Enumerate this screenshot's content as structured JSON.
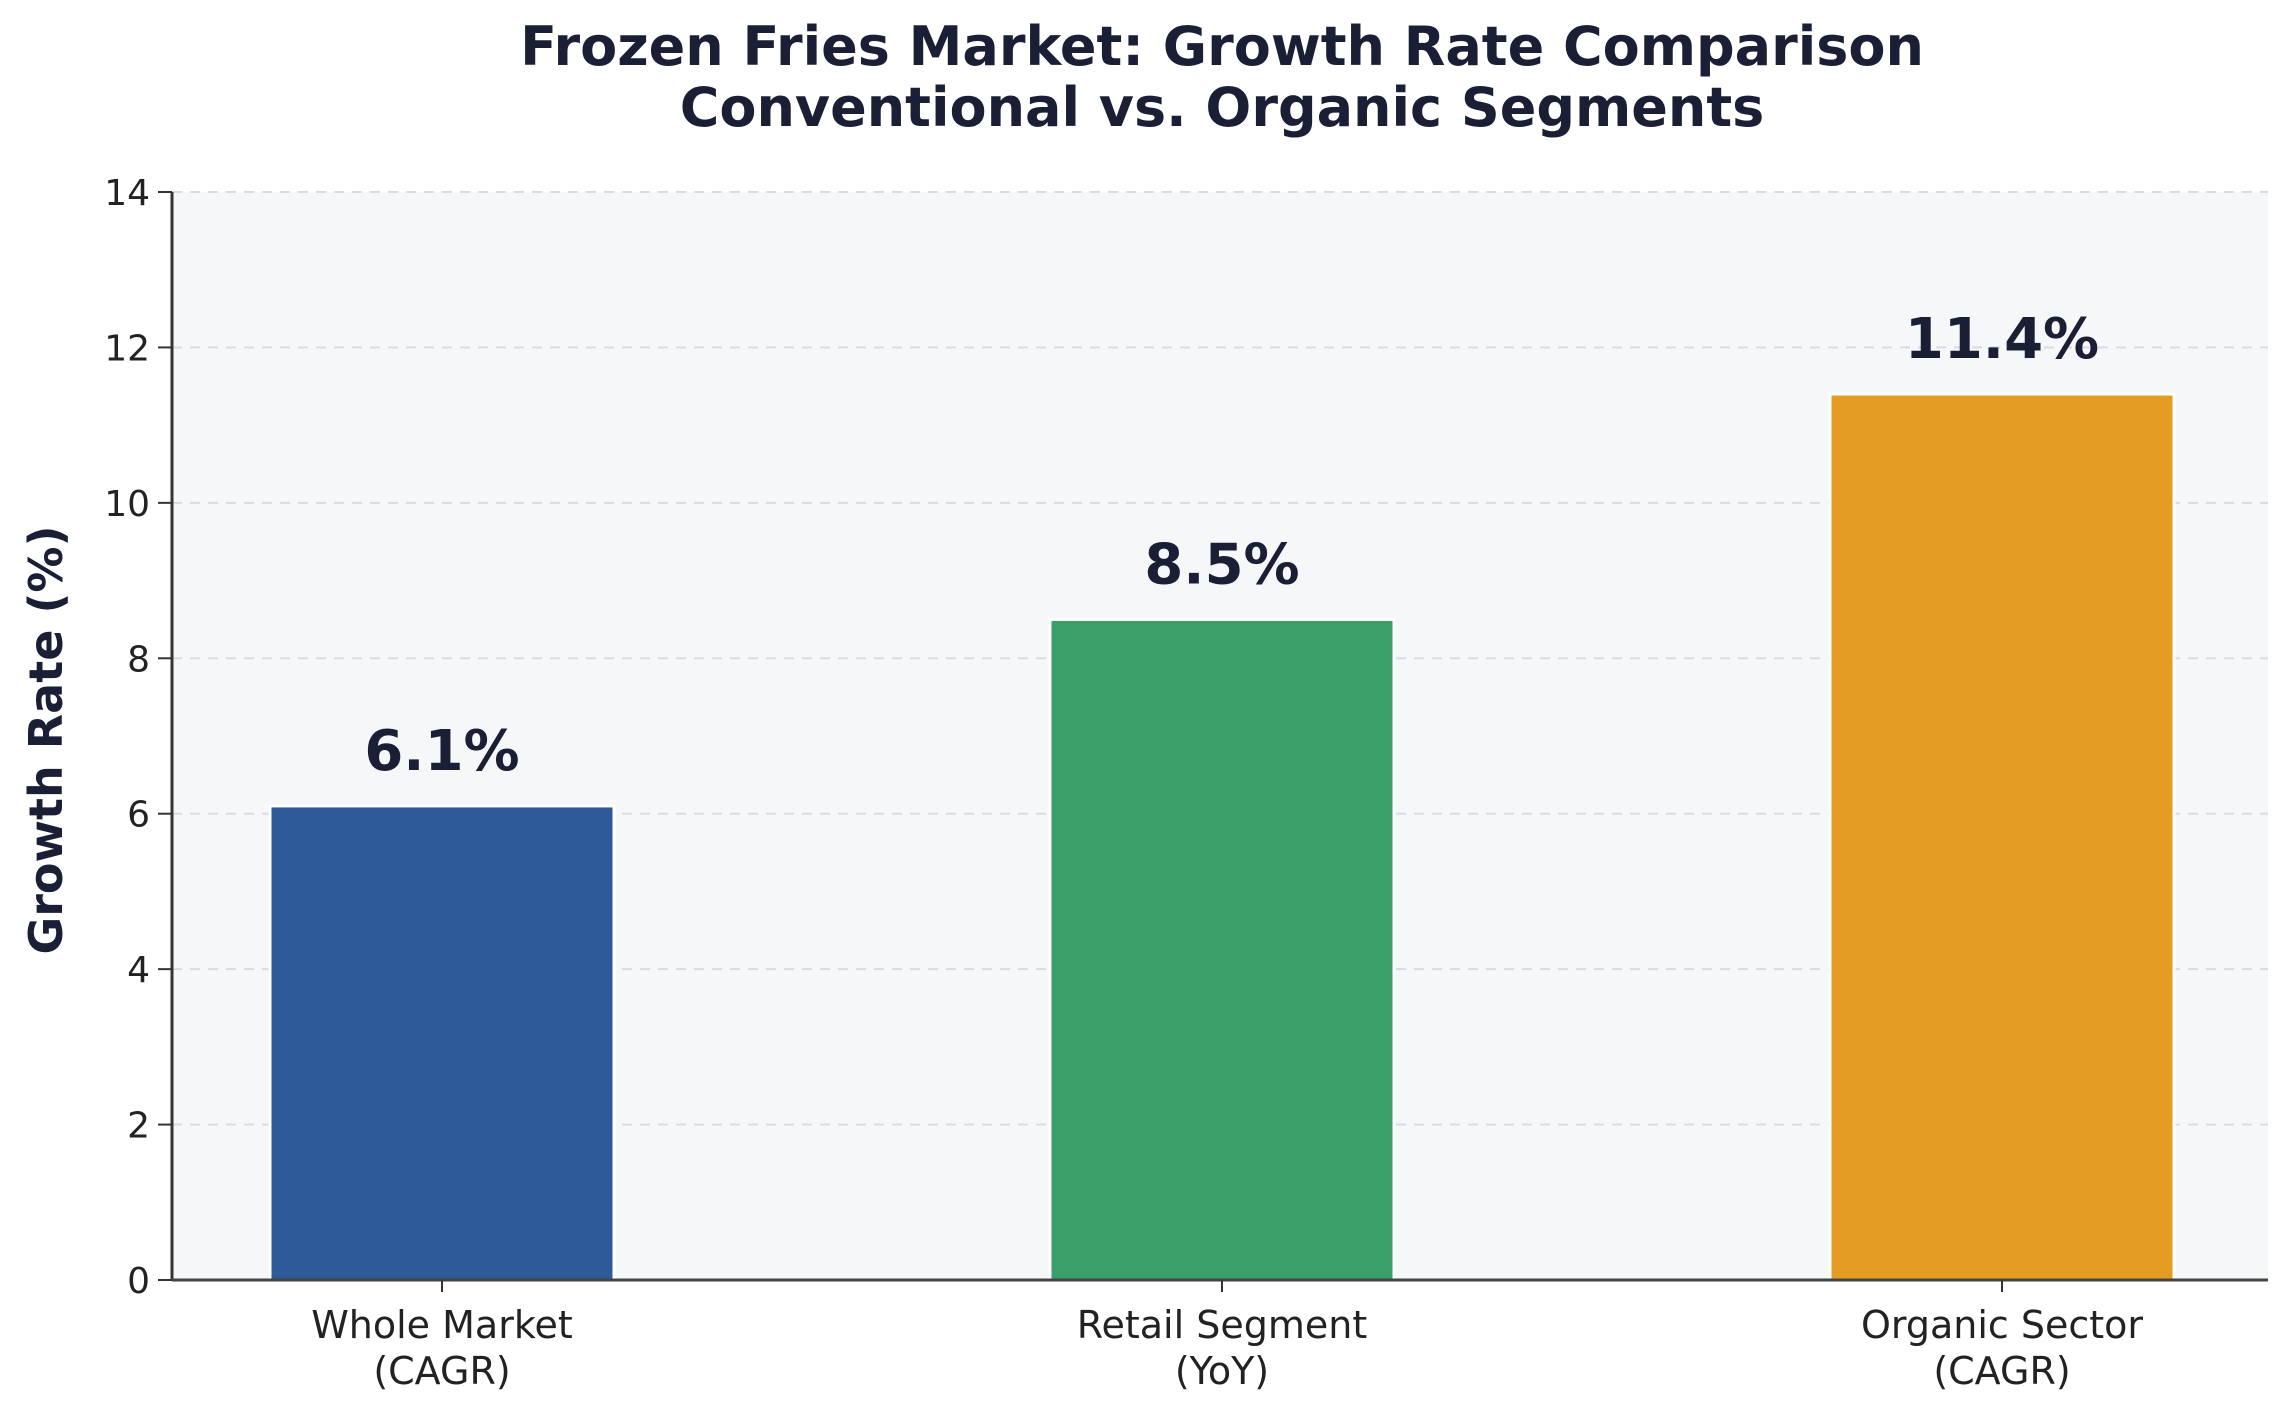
{
  "chart_data": {
    "type": "bar",
    "title": "Frozen Fries Market: Growth Rate Comparison\nConventional vs. Organic Segments",
    "title_lines": [
      "Frozen Fries Market: Growth Rate Comparison",
      "Conventional vs. Organic Segments"
    ],
    "xlabel": "",
    "ylabel": "Growth Rate (%)",
    "ylim": [
      0,
      14
    ],
    "yticks": [
      0,
      2,
      4,
      6,
      8,
      10,
      12,
      14
    ],
    "grid": true,
    "categories": [
      [
        "Whole Market",
        "(CAGR)"
      ],
      [
        "Retail Segment",
        "(YoY)"
      ],
      [
        "Organic Sector",
        "(CAGR)"
      ]
    ],
    "values": [
      6.1,
      8.5,
      11.4
    ],
    "value_labels": [
      "6.1%",
      "8.5%",
      "11.4%"
    ],
    "colors": [
      "#2d5b9a",
      "#3a9f68",
      "#e59c22"
    ]
  }
}
